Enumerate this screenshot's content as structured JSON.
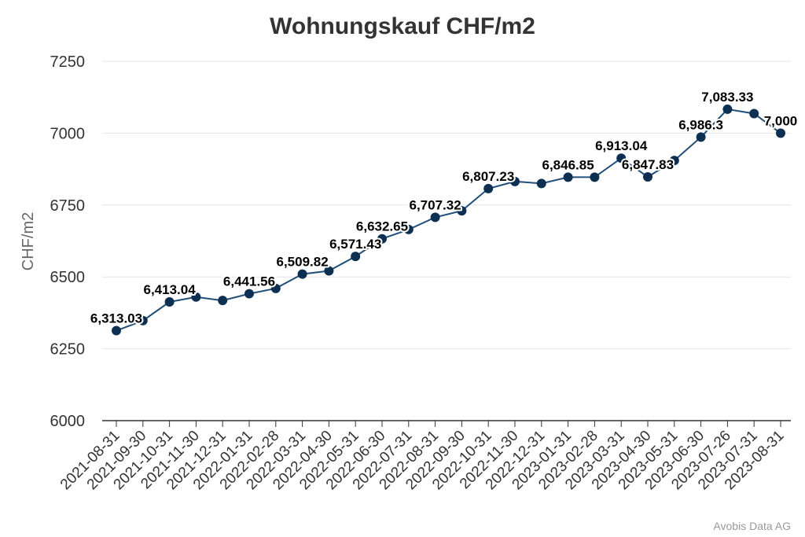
{
  "chart_data": {
    "type": "line",
    "title": "Wohnungskauf CHF/m2",
    "ylabel": "CHF/m2",
    "xlabel": "",
    "ylim": [
      6000,
      7250
    ],
    "yticks": [
      "6000",
      "6250",
      "6500",
      "6750",
      "7000",
      "7250"
    ],
    "grid": true,
    "legend": "none",
    "credit": "Avobis Data AG",
    "colors": {
      "line": "#1f4e79",
      "marker": "#0d2f52",
      "grid": "#e6e6e6",
      "axis": "#333333"
    },
    "categories": [
      "2021-08-31",
      "2021-09-30",
      "2021-10-31",
      "2021-11-30",
      "2021-12-31",
      "2022-01-31",
      "2022-02-28",
      "2022-03-31",
      "2022-04-30",
      "2022-05-31",
      "2022-06-30",
      "2022-07-31",
      "2022-08-31",
      "2022-09-30",
      "2022-10-31",
      "2022-11-30",
      "2022-12-31",
      "2023-01-31",
      "2023-02-28",
      "2023-03-31",
      "2023-04-30",
      "2023-05-31",
      "2023-06-30",
      "2023-07-26",
      "2023-07-31",
      "2023-08-31"
    ],
    "values": [
      6313.03,
      6348,
      6413.04,
      6430,
      6418,
      6441.56,
      6460,
      6509.82,
      6521,
      6571.43,
      6632.65,
      6665,
      6707.32,
      6730,
      6807.23,
      6832,
      6825,
      6846.85,
      6847,
      6913.04,
      6847.83,
      6905,
      6986.3,
      7083.33,
      7068,
      7000
    ],
    "data_labels": [
      "6,313.03",
      "",
      "6,413.04",
      "",
      "",
      "6,441.56",
      "",
      "6,509.82",
      "",
      "6,571.43",
      "6,632.65",
      "",
      "6,707.32",
      "",
      "6,807.23",
      "",
      "",
      "6,846.85",
      "",
      "6,913.04",
      "6,847.83",
      "",
      "6,986.3",
      "7,083.33",
      "",
      "7,000"
    ]
  }
}
